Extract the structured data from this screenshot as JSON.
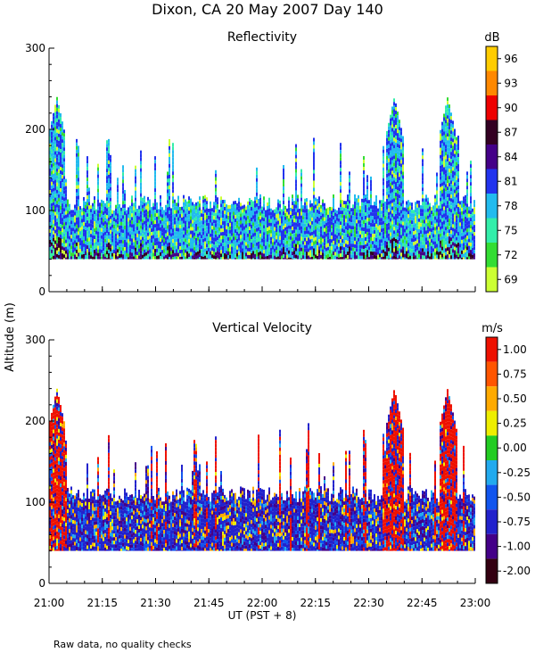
{
  "title": "Dixon, CA 20 May 2007  Day 140",
  "ylabel": "Altitude (m)",
  "xlabel": "UT  (PST + 8)",
  "footnote": "Raw data, no quality checks",
  "chart_data": [
    {
      "type": "heatmap",
      "title": "Reflectivity",
      "x": {
        "min": "21:00",
        "max": "23:00",
        "ticks": [
          "21:00",
          "21:15",
          "21:30",
          "21:45",
          "22:00",
          "22:15",
          "22:30",
          "22:45",
          "23:00"
        ]
      },
      "y": {
        "range": [
          0,
          300
        ],
        "ticks": [
          0,
          100,
          200,
          300
        ],
        "unit": "m"
      },
      "colorbar": {
        "unit": "dB",
        "labels": [
          "96",
          "93",
          "90",
          "87",
          "84",
          "81",
          "78",
          "75",
          "72",
          "69"
        ],
        "colors": [
          "#ffcc00",
          "#ff8800",
          "#ee0000",
          "#330022",
          "#440088",
          "#2233ee",
          "#22bbee",
          "#33eeaa",
          "#33dd33",
          "#ccff33"
        ]
      },
      "data_coverage": {
        "base_altitude_m": 40,
        "typical_top_m": [
          100,
          120
        ],
        "max_top_m": 240,
        "peak_times": [
          "21:02",
          "22:37",
          "22:52"
        ]
      }
    },
    {
      "type": "heatmap",
      "title": "Vertical Velocity",
      "x": {
        "min": "21:00",
        "max": "23:00",
        "ticks": [
          "21:00",
          "21:15",
          "21:30",
          "21:45",
          "22:00",
          "22:15",
          "22:30",
          "22:45",
          "23:00"
        ]
      },
      "y": {
        "range": [
          0,
          300
        ],
        "ticks": [
          0,
          100,
          200,
          300
        ],
        "unit": "m"
      },
      "colorbar": {
        "unit": "m/s",
        "labels": [
          "1.00",
          "0.75",
          "0.50",
          "0.25",
          "0.00",
          "-0.25",
          "-0.50",
          "-0.75",
          "-1.00",
          "-2.00"
        ],
        "colors": [
          "#ee1100",
          "#ff5500",
          "#ffaa00",
          "#eeee00",
          "#22cc22",
          "#22aaee",
          "#1155ee",
          "#2222cc",
          "#440088",
          "#330011"
        ]
      },
      "data_coverage": {
        "base_altitude_m": 40,
        "typical_top_m": [
          100,
          120
        ],
        "max_top_m": 240,
        "peak_times": [
          "21:02",
          "22:37",
          "22:52"
        ]
      }
    }
  ]
}
